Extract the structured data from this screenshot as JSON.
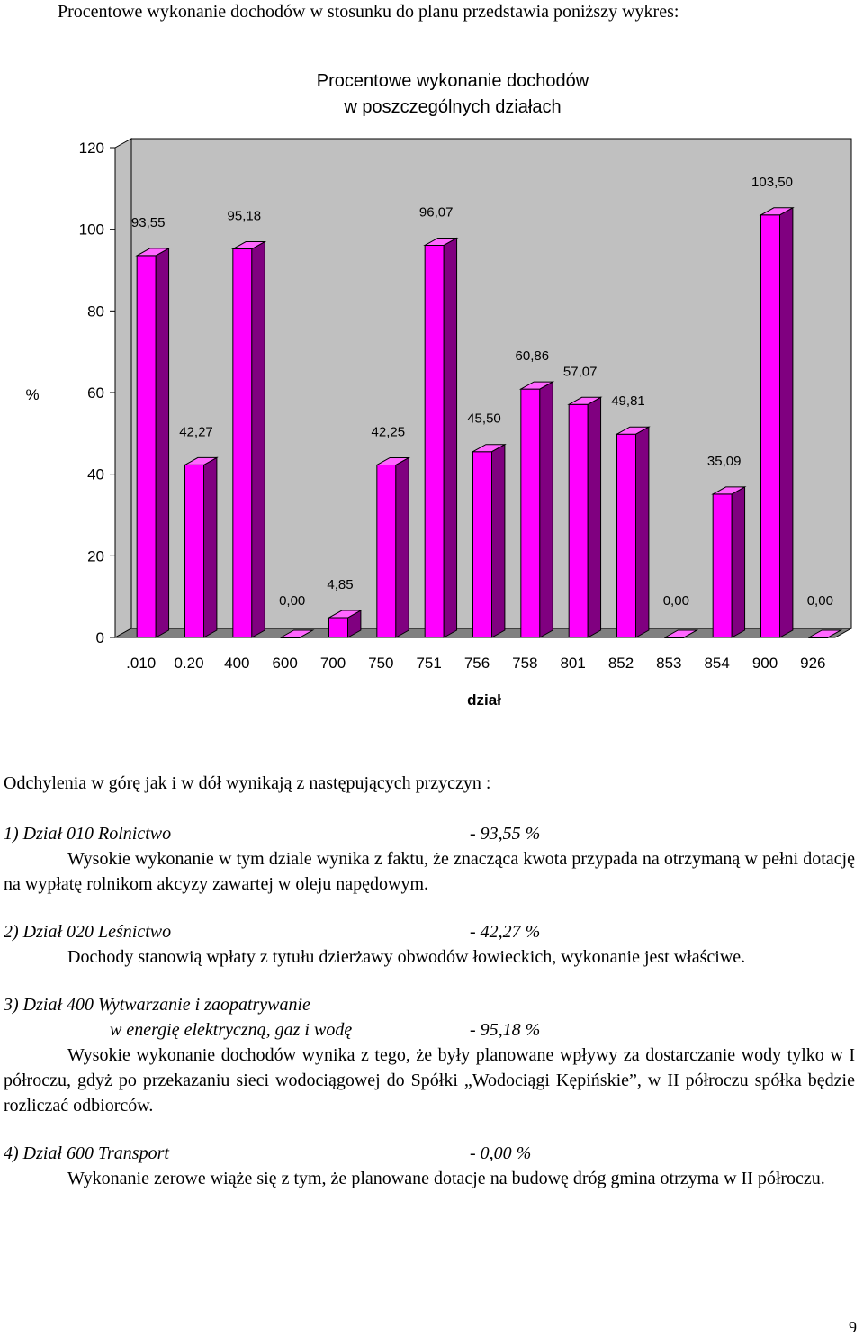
{
  "intro_text": "Procentowe wykonanie dochodów  w stosunku do planu przedstawia poniższy wykres:",
  "chart_data": {
    "type": "bar",
    "title_lines": [
      "Procentowe wykonanie dochodów",
      "w poszczególnych działach"
    ],
    "xlabel": "dział",
    "ylabel": "%",
    "ylim": [
      0,
      120
    ],
    "yticks": [
      0,
      20,
      40,
      60,
      80,
      100,
      120
    ],
    "categories": [
      "010",
      "020",
      "400",
      "600",
      "700",
      "750",
      "751",
      "756",
      "758",
      "801",
      "852",
      "853",
      "854",
      "900",
      "926"
    ],
    "tick_labels": [
      ".010",
      "0.20",
      "400",
      "600",
      "700",
      "750",
      "751",
      "756",
      "758",
      "801",
      "852",
      "853",
      "854",
      "900",
      "926"
    ],
    "values": [
      93.55,
      42.27,
      95.18,
      0.0,
      4.85,
      42.25,
      96.07,
      45.5,
      60.86,
      57.07,
      49.81,
      0.0,
      35.09,
      103.5,
      0.0
    ],
    "value_labels": [
      "93,55",
      "42,27",
      "95,18",
      "0,00",
      "4,85",
      "42,25",
      "96,07",
      "45,50",
      "60,86",
      "57,07",
      "49,81",
      "0,00",
      "35,09",
      "103,50",
      "0,00"
    ],
    "grid": false,
    "legend": "none",
    "colors": {
      "bar_front": "#ff00ff",
      "bar_side": "#800080",
      "bar_top": "#ff66ff",
      "wall": "#c0c0c0",
      "floor": "#808080"
    }
  },
  "body": {
    "heading": "Odchylenia w górę jak i w dół wynikają z następujących przyczyn :",
    "s1": {
      "title": "1) Dział 010 Rolnictwo",
      "pct": "- 93,55  %",
      "text": "Wysokie wykonanie w tym dziale wynika z faktu, że znacząca kwota  przypada na otrzymaną w pełni dotację na wypłatę rolnikom akcyzy zawartej w oleju napędowym."
    },
    "s2": {
      "title": "2) Dział 020 Leśnictwo",
      "pct": "- 42,27  %",
      "text": "Dochody stanowią wpłaty z tytułu dzierżawy obwodów łowieckich, wykonanie jest właściwe."
    },
    "s3": {
      "title_line1": "3) Dział 400 Wytwarzanie i zaopatrywanie",
      "title_line2": "w energię elektryczną, gaz i wodę",
      "pct": "- 95,18 %",
      "text": "Wysokie wykonanie dochodów wynika z tego, że były planowane wpływy za dostarczanie wody tylko w I półroczu, gdyż po przekazaniu sieci wodociągowej do Spółki „Wodociągi Kępińskie”, w II półroczu spółka będzie rozliczać odbiorców."
    },
    "s4": {
      "title": "4) Dział 600 Transport",
      "pct": "- 0,00 %",
      "text": "Wykonanie zerowe wiąże się z tym, że planowane dotacje na budowę dróg gmina otrzyma w II półroczu."
    }
  },
  "page_number": "9"
}
